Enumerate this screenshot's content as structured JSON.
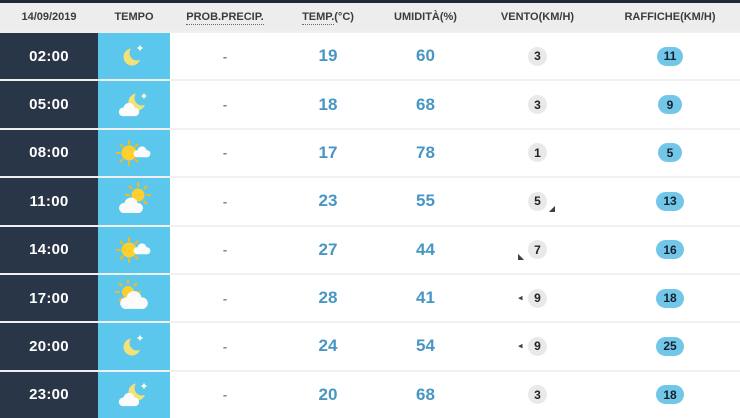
{
  "colors": {
    "top_bar": "#1e2a3a",
    "header_bg": "#ededed",
    "header_text": "#3c3c3c",
    "time_col_bg": "#293647",
    "icon_col_bg": "#5cc7ec",
    "value_text": "#4796c3",
    "wind_badge_bg": "#e9e9e9",
    "gust_pill_bg": "#72c7e9",
    "gust_pill_text": "#15202e",
    "row_separator": "#f0f0f0"
  },
  "table": {
    "header": {
      "date": "14/09/2019",
      "tempo": "TEMPO",
      "prob_precip": "PROB.PRECIP.",
      "temp_main": "TEMP.",
      "temp_suffix": "(°C)",
      "humidity": "UMIDITÀ(%)",
      "wind": "VENTO(KM/H)",
      "gusts": "RAFFICHE(KM/H)"
    },
    "rows": [
      {
        "time": "02:00",
        "icon": "moon-star-icon",
        "precip": "-",
        "temp": "19",
        "humidity": "60",
        "wind": "3",
        "wind_arrow": null,
        "gust": "11"
      },
      {
        "time": "05:00",
        "icon": "moon-cloud-icon",
        "precip": "-",
        "temp": "18",
        "humidity": "68",
        "wind": "3",
        "wind_arrow": null,
        "gust": "9"
      },
      {
        "time": "08:00",
        "icon": "sun-small-cloud-icon",
        "precip": "-",
        "temp": "17",
        "humidity": "78",
        "wind": "1",
        "wind_arrow": null,
        "gust": "5"
      },
      {
        "time": "11:00",
        "icon": "sun-cloud-icon",
        "precip": "-",
        "temp": "23",
        "humidity": "55",
        "wind": "5",
        "wind_arrow": {
          "char": "◢",
          "side": "right",
          "valign": "bottom"
        },
        "gust": "13"
      },
      {
        "time": "14:00",
        "icon": "sun-small-cloud-icon",
        "precip": "-",
        "temp": "27",
        "humidity": "44",
        "wind": "7",
        "wind_arrow": {
          "char": "◣",
          "side": "left",
          "valign": "bottom"
        },
        "gust": "16"
      },
      {
        "time": "17:00",
        "icon": "cloud-sun-icon",
        "precip": "-",
        "temp": "28",
        "humidity": "41",
        "wind": "9",
        "wind_arrow": {
          "char": "◂",
          "side": "left",
          "valign": "middle"
        },
        "gust": "18"
      },
      {
        "time": "20:00",
        "icon": "moon-star-icon",
        "precip": "-",
        "temp": "24",
        "humidity": "54",
        "wind": "9",
        "wind_arrow": {
          "char": "◂",
          "side": "left",
          "valign": "middle"
        },
        "gust": "25"
      },
      {
        "time": "23:00",
        "icon": "moon-cloud-icon",
        "precip": "-",
        "temp": "20",
        "humidity": "68",
        "wind": "3",
        "wind_arrow": null,
        "gust": "18"
      }
    ]
  }
}
